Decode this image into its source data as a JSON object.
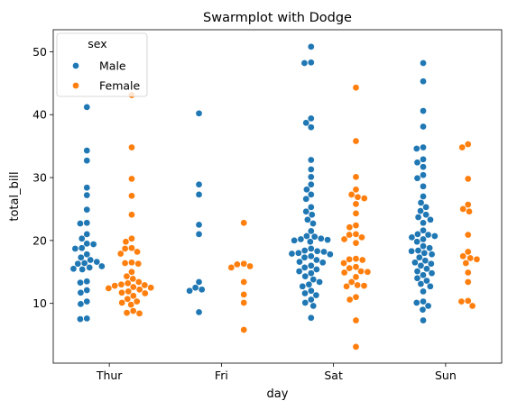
{
  "chart_data": {
    "type": "scatter",
    "subtype": "swarm-dodge",
    "title": "Swarmplot with Dodge",
    "xlabel": "day",
    "ylabel": "total_bill",
    "categories": [
      "Thur",
      "Fri",
      "Sat",
      "Sun"
    ],
    "ylim": [
      0.5,
      53.5
    ],
    "yticks": [
      10,
      20,
      30,
      40,
      50
    ],
    "grid": false,
    "legend": {
      "title": "sex",
      "placement": "top-left"
    },
    "series": [
      {
        "name": "Male",
        "color": "#1f77b4",
        "values": {
          "Thur": [
            41.2,
            34.3,
            32.7,
            28.4,
            27.2,
            24.9,
            22.8,
            22.7,
            21.0,
            20.3,
            19.5,
            19.4,
            18.8,
            18.7,
            17.8,
            17.3,
            16.9,
            16.6,
            16.4,
            16.3,
            15.9,
            15.7,
            15.5,
            15.4,
            13.5,
            13.3,
            12.1,
            11.7,
            10.3,
            9.9,
            7.6,
            7.5
          ],
          "Fri": [
            40.2,
            28.9,
            27.3,
            22.5,
            21.0,
            13.4,
            12.5,
            12.2,
            12.0,
            8.6
          ],
          "Sat": [
            50.8,
            48.3,
            48.2,
            39.4,
            38.7,
            38.0,
            32.8,
            31.3,
            30.1,
            28.9,
            28.1,
            27.3,
            26.6,
            25.3,
            24.6,
            24.1,
            23.3,
            22.7,
            21.5,
            20.7,
            20.6,
            20.3,
            20.2,
            20.1,
            20.0,
            19.8,
            18.7,
            18.4,
            18.3,
            18.2,
            18.0,
            17.9,
            17.8,
            17.5,
            17.3,
            16.9,
            16.6,
            16.5,
            16.0,
            15.7,
            15.4,
            15.1,
            14.8,
            14.3,
            13.8,
            13.4,
            13.0,
            12.7,
            12.0,
            11.6,
            11.3,
            10.6,
            10.1,
            9.6,
            7.7
          ],
          "Sun": [
            48.2,
            45.3,
            40.6,
            38.1,
            34.8,
            34.6,
            32.9,
            32.4,
            31.7,
            30.4,
            29.9,
            28.6,
            27.0,
            26.0,
            25.3,
            24.7,
            24.1,
            23.7,
            23.3,
            22.8,
            21.6,
            21.0,
            20.9,
            20.7,
            20.5,
            20.2,
            19.8,
            19.1,
            18.8,
            18.4,
            18.3,
            18.0,
            17.8,
            17.3,
            16.8,
            16.5,
            16.3,
            16.0,
            15.5,
            15.1,
            14.8,
            14.5,
            14.0,
            13.6,
            13.1,
            12.7,
            11.9,
            10.3,
            10.1,
            9.6,
            9.0,
            7.3
          ]
        }
      },
      {
        "name": "Female",
        "color": "#ff7f0e",
        "values": {
          "Thur": [
            43.1,
            34.8,
            29.8,
            27.1,
            24.1,
            20.3,
            19.8,
            18.8,
            18.7,
            18.2,
            17.9,
            16.5,
            16.4,
            16.3,
            15.0,
            14.3,
            13.9,
            13.4,
            13.2,
            13.0,
            12.9,
            12.8,
            12.6,
            12.5,
            12.4,
            12.2,
            11.9,
            11.7,
            11.6,
            11.2,
            10.7,
            10.3,
            10.1,
            9.8,
            8.8,
            8.5,
            8.4
          ],
          "Fri": [
            22.8,
            16.3,
            16.2,
            15.9,
            15.7,
            13.4,
            11.4,
            10.1,
            5.8
          ],
          "Sat": [
            44.3,
            35.8,
            30.1,
            28.1,
            27.3,
            26.9,
            26.7,
            25.8,
            24.3,
            22.4,
            22.1,
            21.0,
            20.9,
            20.5,
            20.2,
            19.6,
            17.1,
            17.0,
            16.9,
            16.4,
            15.8,
            15.6,
            15.1,
            15.0,
            14.9,
            14.2,
            13.4,
            12.9,
            12.8,
            12.7,
            11.0,
            10.6,
            7.3,
            3.1
          ],
          "Sun": [
            35.3,
            34.8,
            29.8,
            25.7,
            25.0,
            24.6,
            20.9,
            18.2,
            17.5,
            17.2,
            17.0,
            16.4,
            14.9,
            13.4,
            10.4,
            10.3,
            9.6
          ]
        }
      }
    ]
  }
}
